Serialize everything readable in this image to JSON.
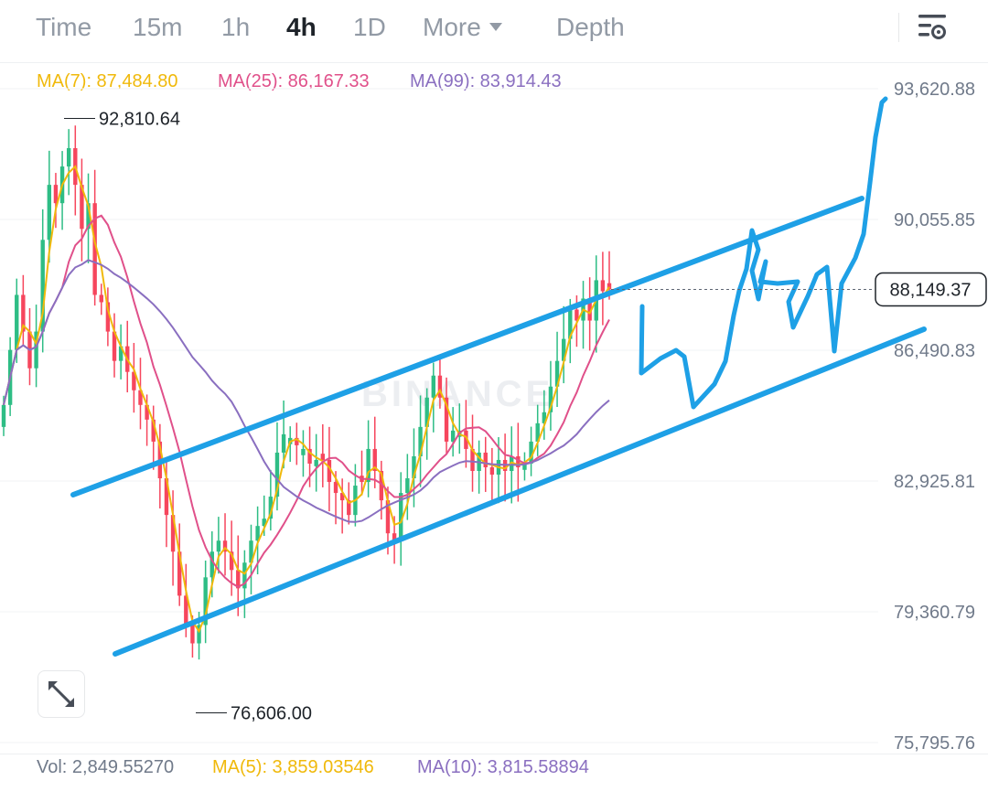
{
  "tabs": [
    {
      "label": "Time",
      "active": false
    },
    {
      "label": "15m",
      "active": false
    },
    {
      "label": "1h",
      "active": false
    },
    {
      "label": "4h",
      "active": true
    },
    {
      "label": "1D",
      "active": false
    },
    {
      "label": "More",
      "active": false
    },
    {
      "label": "Depth",
      "active": false
    }
  ],
  "ma_legend": [
    {
      "text": "MA(7): 87,484.80",
      "color": "#f0b90b"
    },
    {
      "text": "MA(25): 86,167.33",
      "color": "#e0508a"
    },
    {
      "text": "MA(99): 83,914.43",
      "color": "#8a6fc0"
    }
  ],
  "vol_legend": [
    {
      "text": "Vol: 2,849.55270",
      "color": "#707a8a"
    },
    {
      "text": "MA(5): 3,859.03546",
      "color": "#f0b90b"
    },
    {
      "text": "MA(10): 3,815.58894",
      "color": "#8a6fc0"
    }
  ],
  "watermark": "BINANCE",
  "icons": {
    "settings": "chart-settings-icon",
    "expand": "expand-icon",
    "more": "caret-down-icon"
  },
  "colors": {
    "up": "#2ebd85",
    "down": "#f6465d",
    "drawing": "#1ea0e6",
    "text": "#1e2329",
    "muted": "#707a8a",
    "grid": "#f2f3f5"
  },
  "chart_data": {
    "type": "candlestick",
    "interval": "4h",
    "y_axis_labels": [
      "93,620.88",
      "90,055.85",
      "86,490.83",
      "82,925.81",
      "79,360.79",
      "75,795.76"
    ],
    "ylim": [
      75795.76,
      93620.88
    ],
    "current_price": 88149.37,
    "current_price_label": "88,149.37",
    "high_marker": {
      "label": "92,810.64",
      "value": 92810.64
    },
    "low_marker": {
      "label": "76,606.00",
      "value": 76606.0
    },
    "ma_lines": [
      {
        "name": "MA(7)",
        "color": "#f0b90b"
      },
      {
        "name": "MA(25)",
        "color": "#e0508a"
      },
      {
        "name": "MA(99)",
        "color": "#8a6fc0"
      }
    ],
    "candle_closes": [
      85000,
      86500,
      88000,
      87000,
      86000,
      87000,
      89500,
      91000,
      90500,
      91500,
      92000,
      91000,
      89800,
      90500,
      88000,
      87800,
      87000,
      86200,
      86600,
      85900,
      85400,
      85000,
      84600,
      84000,
      83000,
      82000,
      81000,
      79800,
      79000,
      78500,
      79000,
      80300,
      81000,
      81300,
      81000,
      80500,
      80000,
      80700,
      81300,
      81700,
      81900,
      82500,
      83700,
      84200,
      84100,
      83900,
      83800,
      83400,
      83500,
      83500,
      82900,
      82600,
      82400,
      82000,
      82800,
      82900,
      83800,
      83200,
      82400,
      81500,
      81300,
      82600,
      83000,
      83600,
      84400,
      85200,
      85800,
      85200,
      84000,
      84300,
      84300,
      83800,
      83200,
      83700,
      83300,
      83100,
      83500,
      83200,
      83600,
      83300,
      83400,
      84000,
      84500,
      84800,
      85500,
      86200,
      86800,
      87600,
      87300,
      87900,
      87300,
      88400,
      88100,
      88149.37
    ]
  }
}
